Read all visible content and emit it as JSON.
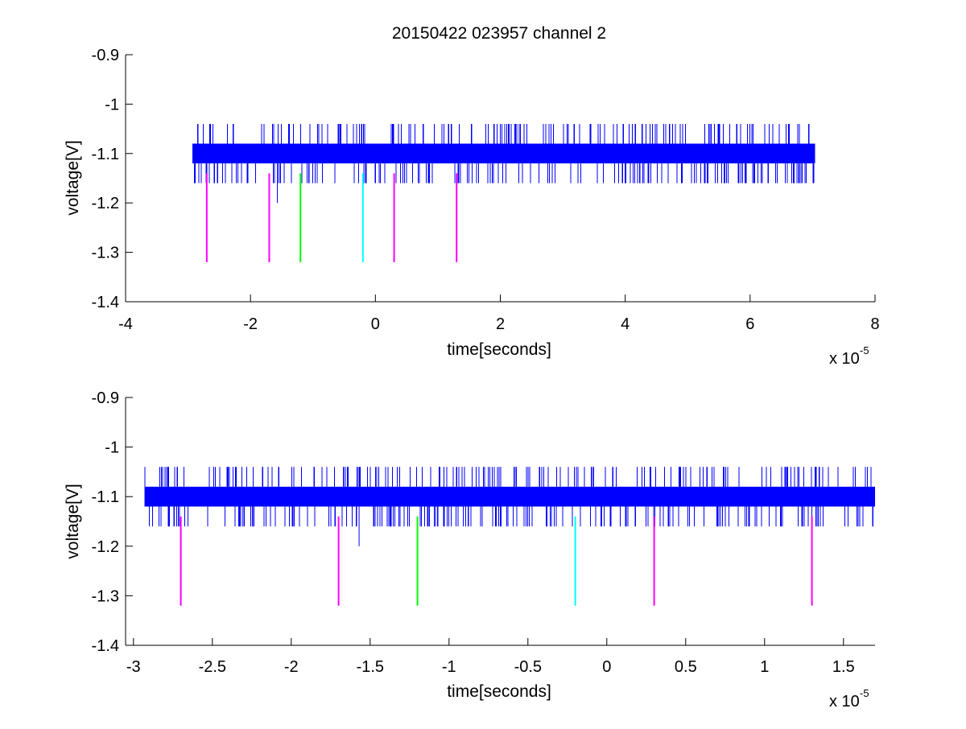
{
  "chart_data": [
    {
      "type": "line",
      "title": "20150422 023957 channel 2",
      "xlabel": "time[seconds]",
      "ylabel": "voltage[V]",
      "x_multiplier_base": "x 10",
      "x_multiplier_exp": "-5",
      "xlim": [
        -4,
        8
      ],
      "ylim": [
        -1.4,
        -0.9
      ],
      "xticks": [
        -4,
        -2,
        0,
        2,
        4,
        6,
        8
      ],
      "xtick_labels": [
        "-4",
        "-2",
        "0",
        "2",
        "4",
        "6",
        "8"
      ],
      "yticks": [
        -1.4,
        -1.3,
        -1.2,
        -1.1,
        -1,
        -0.9
      ],
      "ytick_labels": [
        "-1.4",
        "-1.3",
        "-1.2",
        "-1.1",
        "-1",
        "-0.9"
      ],
      "grid": false,
      "series": [
        {
          "color": "#0000ff",
          "x_range": [
            -2.93,
            7.04
          ],
          "core_band": [
            -1.12,
            -1.08
          ],
          "spike_high": -1.04,
          "spike_low": -1.16,
          "dip": {
            "x": -1.57,
            "y": -1.2
          }
        }
      ],
      "markers": [
        {
          "x": -2.7,
          "y_top": -1.14,
          "y_bottom": -1.32,
          "color": "#ff00ff"
        },
        {
          "x": -1.7,
          "y_top": -1.14,
          "y_bottom": -1.32,
          "color": "#ff00ff"
        },
        {
          "x": -1.2,
          "y_top": -1.14,
          "y_bottom": -1.32,
          "color": "#00ff00"
        },
        {
          "x": -0.2,
          "y_top": -1.14,
          "y_bottom": -1.32,
          "color": "#00ffff"
        },
        {
          "x": 0.3,
          "y_top": -1.14,
          "y_bottom": -1.32,
          "color": "#ff00ff"
        },
        {
          "x": 1.3,
          "y_top": -1.14,
          "y_bottom": -1.32,
          "color": "#ff00ff"
        }
      ]
    },
    {
      "type": "line",
      "title": "",
      "xlabel": "time[seconds]",
      "ylabel": "voltage[V]",
      "x_multiplier_base": "x 10",
      "x_multiplier_exp": "-5",
      "xlim": [
        -3.05,
        1.7
      ],
      "ylim": [
        -1.4,
        -0.9
      ],
      "xticks": [
        -3,
        -2.5,
        -2,
        -1.5,
        -1,
        -0.5,
        0,
        0.5,
        1,
        1.5
      ],
      "xtick_labels": [
        "-3",
        "-2.5",
        "-2",
        "-1.5",
        "-1",
        "-0.5",
        "0",
        "0.5",
        "1",
        "1.5"
      ],
      "yticks": [
        -1.4,
        -1.3,
        -1.2,
        -1.1,
        -1,
        -0.9
      ],
      "ytick_labels": [
        "-1.4",
        "-1.3",
        "-1.2",
        "-1.1",
        "-1",
        "-0.9"
      ],
      "grid": false,
      "series": [
        {
          "color": "#0000ff",
          "x_range": [
            -2.93,
            1.7
          ],
          "core_band": [
            -1.12,
            -1.08
          ],
          "spike_high": -1.04,
          "spike_low": -1.16,
          "dip": {
            "x": -1.57,
            "y": -1.2
          }
        }
      ],
      "markers": [
        {
          "x": -2.7,
          "y_top": -1.14,
          "y_bottom": -1.32,
          "color": "#ff00ff"
        },
        {
          "x": -1.7,
          "y_top": -1.14,
          "y_bottom": -1.32,
          "color": "#ff00ff"
        },
        {
          "x": -1.2,
          "y_top": -1.14,
          "y_bottom": -1.32,
          "color": "#00ff00"
        },
        {
          "x": -0.2,
          "y_top": -1.14,
          "y_bottom": -1.32,
          "color": "#00ffff"
        },
        {
          "x": 0.3,
          "y_top": -1.14,
          "y_bottom": -1.32,
          "color": "#ff00ff"
        },
        {
          "x": 1.3,
          "y_top": -1.14,
          "y_bottom": -1.32,
          "color": "#ff00ff"
        }
      ]
    }
  ]
}
